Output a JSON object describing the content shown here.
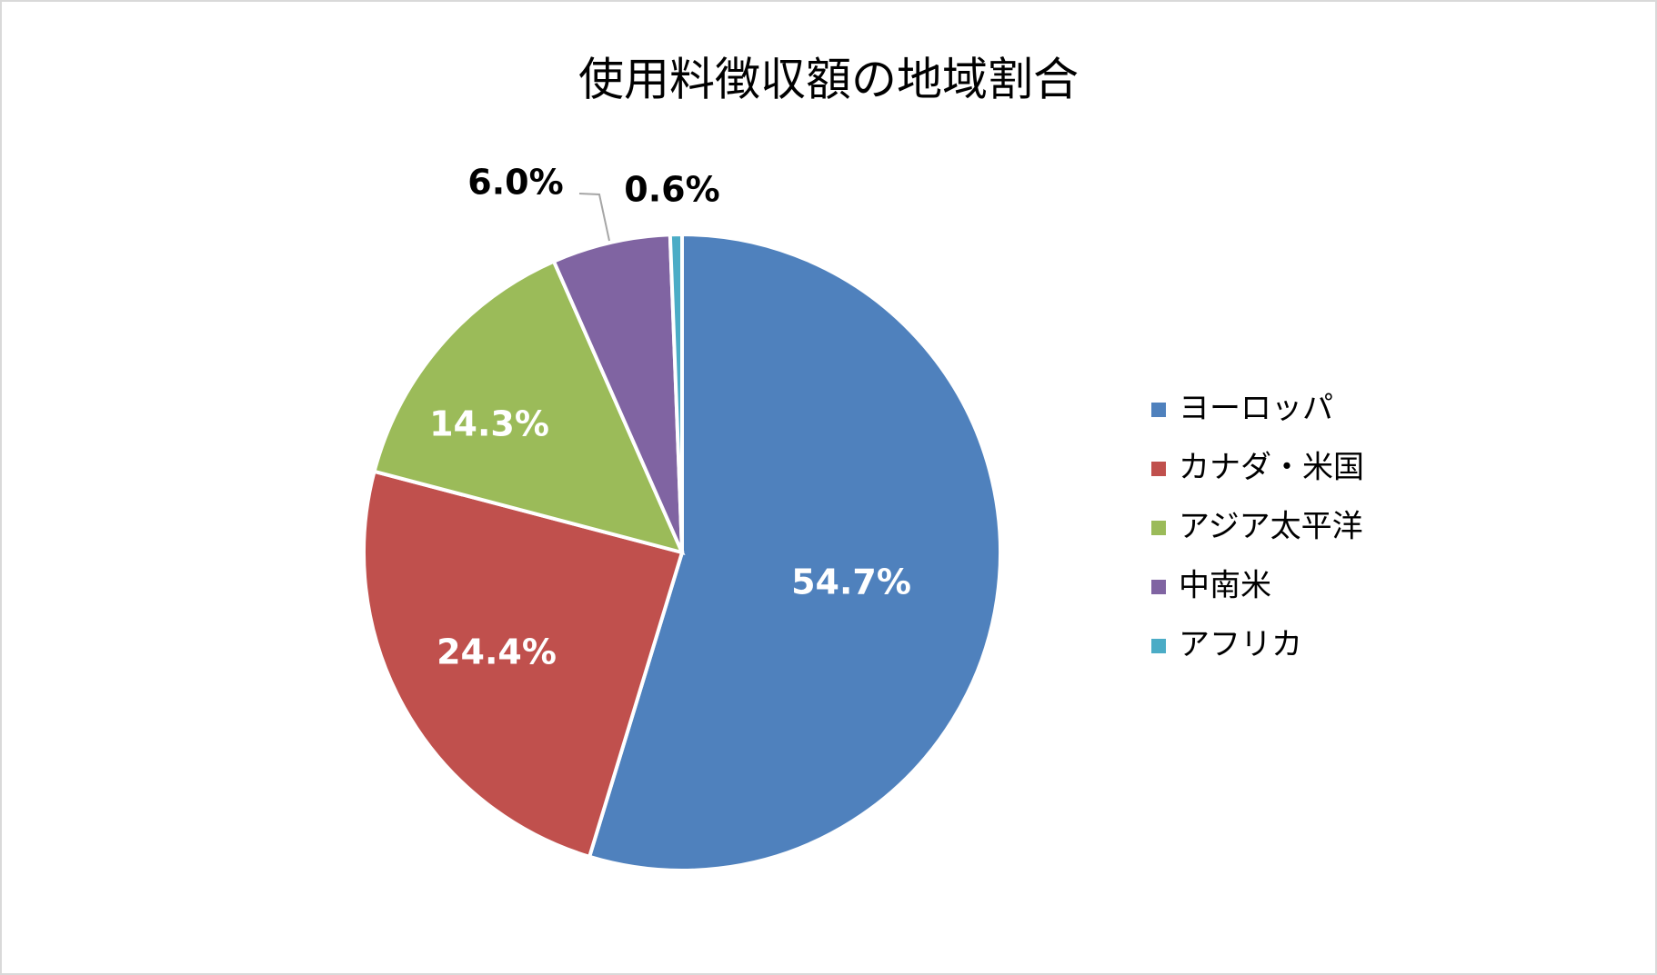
{
  "chart_data": {
    "type": "pie",
    "title": "使用料徴収額の地域割合",
    "categories": [
      "ヨーロッパ",
      "カナダ・米国",
      "アジア太平洋",
      "中南米",
      "アフリカ"
    ],
    "values": [
      54.7,
      24.4,
      14.3,
      6.0,
      0.6
    ],
    "value_labels": [
      "54.7%",
      "24.4%",
      "14.3%",
      "6.0%",
      "0.6%"
    ],
    "colors": [
      "#4f81bd",
      "#c0504d",
      "#9bbb59",
      "#8064a2",
      "#4bacc6"
    ],
    "legend": "right"
  }
}
